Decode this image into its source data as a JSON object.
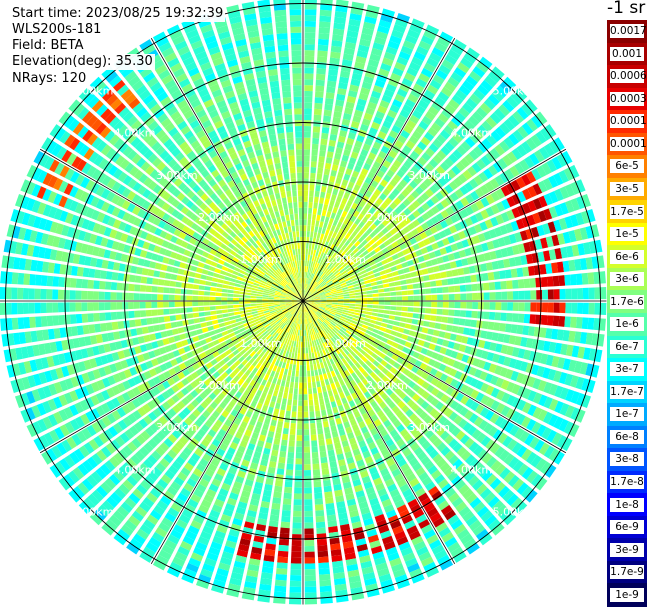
{
  "header": {
    "start_time": "Start time: 2023/08/25 19:32:39",
    "instrument": "WLS200s-181",
    "field": "Field: BETA",
    "elevation": "Elevation(deg): 35.30",
    "nrays": "NRays: 120"
  },
  "colorbar": {
    "unit_title": "-1 sr",
    "labels": [
      "0.0017",
      "0.001",
      "0.0006",
      "0.0003",
      "0.00017",
      "0.0001",
      "6e-5",
      "3e-5",
      "1.7e-5",
      "1e-5",
      "6e-6",
      "3e-6",
      "1.7e-6",
      "1e-6",
      "6e-7",
      "3e-7",
      "1.7e-7",
      "1e-7",
      "6e-8",
      "3e-8",
      "1.7e-8",
      "1e-8",
      "6e-9",
      "3e-9",
      "1.7e-9",
      "1e-9"
    ],
    "colors": [
      "#8b0000",
      "#a80000",
      "#c80000",
      "#e80000",
      "#ff2a00",
      "#ff5500",
      "#ff8000",
      "#ffaa00",
      "#ffd400",
      "#ffff00",
      "#d4ff2a",
      "#aaff55",
      "#80ff80",
      "#55ffaa",
      "#2affd4",
      "#00ffff",
      "#00d4ff",
      "#00aaff",
      "#0080ff",
      "#0055ff",
      "#002aff",
      "#0000ff",
      "#0000d4",
      "#0000aa",
      "#000080",
      "#00005a"
    ]
  },
  "chart_data": {
    "type": "heatmap",
    "projection": "polar (PPI scan)",
    "field": "BETA",
    "elevation_deg": 35.3,
    "n_rays": 120,
    "range_unit": "km",
    "range_rings_km": [
      1,
      2,
      3,
      4,
      5
    ],
    "ring_labels": [
      "1.00km",
      "2.00km",
      "3.00km",
      "4.00km",
      "5.00km"
    ],
    "max_range_km": 5.1,
    "azimuth_lines_deg": [
      0,
      30,
      60,
      90,
      120,
      150,
      180,
      210,
      240,
      270,
      300,
      330
    ],
    "colorscale": "log10 backscatter, 1e-9 to 0.0017 sr-1",
    "features": [
      {
        "description": "strong return arc",
        "azimuth_deg": [
          60,
          95
        ],
        "range_km": [
          3.8,
          4.4
        ],
        "value_range": [
          "1e-5",
          "1e-4"
        ]
      },
      {
        "description": "strong return arc",
        "azimuth_deg": [
          145,
          195
        ],
        "range_km": [
          3.8,
          4.4
        ],
        "value_range": [
          "1e-5",
          "1e-4"
        ]
      },
      {
        "description": "moderate return arc",
        "azimuth_deg": [
          290,
          320
        ],
        "range_km": [
          4.3,
          4.8
        ],
        "value_range": [
          "3e-6",
          "1e-5"
        ]
      },
      {
        "description": "background near range",
        "range_km": [
          0,
          2.5
        ],
        "value_range": [
          "6e-8",
          "3e-7"
        ]
      },
      {
        "description": "background far range",
        "range_km": [
          2.5,
          5.1
        ],
        "value_range": [
          "1e-8",
          "6e-8"
        ]
      }
    ]
  }
}
